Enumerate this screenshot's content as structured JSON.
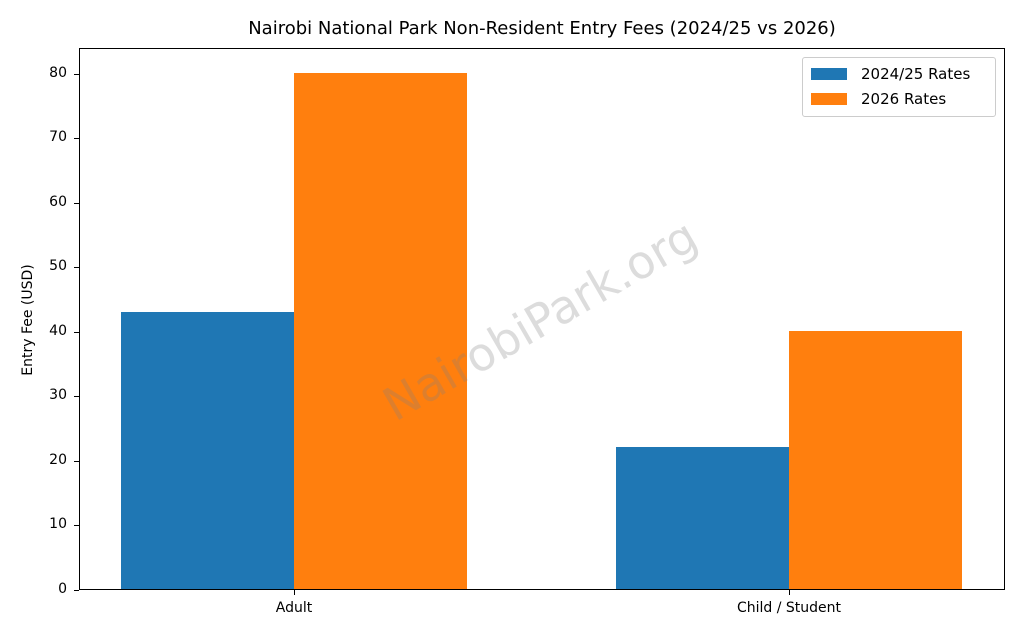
{
  "chart_data": {
    "type": "bar",
    "title": "Nairobi National Park Non-Resident Entry Fees (2024/25 vs 2026)",
    "xlabel": "",
    "ylabel": "Entry Fee (USD)",
    "categories": [
      "Adult",
      "Child / Student"
    ],
    "series": [
      {
        "name": "2024/25 Rates",
        "color": "#1f77b4",
        "values": [
          43,
          22
        ]
      },
      {
        "name": "2026 Rates",
        "color": "#ff7f0e",
        "values": [
          80,
          40
        ]
      }
    ],
    "ylim": [
      0,
      84
    ],
    "yticks": [
      0,
      10,
      20,
      30,
      40,
      50,
      60,
      70,
      80
    ],
    "grid": false,
    "legend_position": "upper right",
    "watermark": "NairobiPark.org"
  }
}
